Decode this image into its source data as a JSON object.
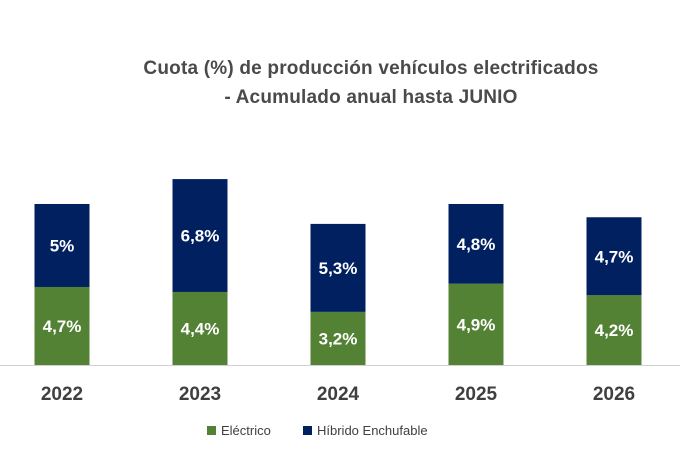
{
  "chart_data": {
    "type": "bar",
    "stacked": true,
    "title_lines": [
      "Cuota (%) de producción vehículos electrificados",
      "- Acumulado anual hasta JUNIO"
    ],
    "categories": [
      "2022",
      "2023",
      "2024",
      "2025",
      "2026"
    ],
    "series": [
      {
        "name": "Eléctrico",
        "color": "#548235",
        "values": [
          4.7,
          4.4,
          3.2,
          4.9,
          4.2
        ],
        "labels": [
          "4,7%",
          "4,4%",
          "3,2%",
          "4,9%",
          "4,2%"
        ]
      },
      {
        "name": "Híbrido Enchufable",
        "color": "#002060",
        "values": [
          5.0,
          6.8,
          5.3,
          4.8,
          4.7
        ],
        "labels": [
          "5%",
          "6,8%",
          "5,3%",
          "4,8%",
          "4,7%"
        ]
      }
    ],
    "legend_position": "bottom",
    "grid": false,
    "y_axis_visible": false
  }
}
